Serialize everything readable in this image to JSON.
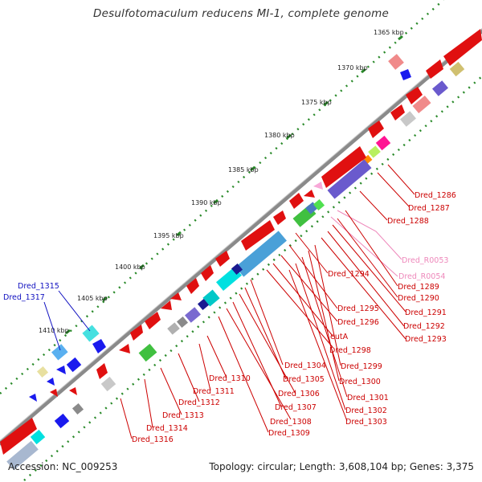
{
  "title": "Desulfotomaculum reducens MI-1, complete genome",
  "footer": {
    "accession": "Accession: NC_009253",
    "summary": "Topology: circular; Length: 3,608,104 bp; Genes: 3,375"
  },
  "ticks": [
    "1365 kbp",
    "1370 kbp",
    "1375 kbp",
    "1380 kbp",
    "1385 kbp",
    "1390 kbp",
    "1395 kbp",
    "1400 kbp",
    "1405 kbp",
    "1410 kbp"
  ],
  "labels": [
    {
      "text": "Dred_1315",
      "color": "#1010c0"
    },
    {
      "text": "Dred_1317",
      "color": "#1010c0"
    },
    {
      "text": "Dred_1286",
      "color": "#cc0000"
    },
    {
      "text": "Dred_1287",
      "color": "#cc0000"
    },
    {
      "text": "Dred_1288",
      "color": "#cc0000"
    },
    {
      "text": "Dred_R0053",
      "color": "#ee88bb"
    },
    {
      "text": "Dred_R0054",
      "color": "#ee88bb"
    },
    {
      "text": "Dred_1294",
      "color": "#cc0000"
    },
    {
      "text": "Dred_1289",
      "color": "#cc0000"
    },
    {
      "text": "Dred_1290",
      "color": "#cc0000"
    },
    {
      "text": "Dred_1291",
      "color": "#cc0000"
    },
    {
      "text": "Dred_1295",
      "color": "#cc0000"
    },
    {
      "text": "Dred_1292",
      "color": "#cc0000"
    },
    {
      "text": "Dred_1296",
      "color": "#cc0000"
    },
    {
      "text": "Dred_1293",
      "color": "#cc0000"
    },
    {
      "text": "eutA",
      "color": "#cc0000"
    },
    {
      "text": "Dred_1298",
      "color": "#cc0000"
    },
    {
      "text": "Dred_1299",
      "color": "#cc0000"
    },
    {
      "text": "Dred_1304",
      "color": "#cc0000"
    },
    {
      "text": "Dred_1310",
      "color": "#cc0000"
    },
    {
      "text": "Dred_1305",
      "color": "#cc0000"
    },
    {
      "text": "Dred_1300",
      "color": "#cc0000"
    },
    {
      "text": "Dred_1311",
      "color": "#cc0000"
    },
    {
      "text": "Dred_1306",
      "color": "#cc0000"
    },
    {
      "text": "Dred_1301",
      "color": "#cc0000"
    },
    {
      "text": "Dred_1312",
      "color": "#cc0000"
    },
    {
      "text": "Dred_1307",
      "color": "#cc0000"
    },
    {
      "text": "Dred_1302",
      "color": "#cc0000"
    },
    {
      "text": "Dred_1313",
      "color": "#cc0000"
    },
    {
      "text": "Dred_1308",
      "color": "#cc0000"
    },
    {
      "text": "Dred_1303",
      "color": "#cc0000"
    },
    {
      "text": "Dred_1314",
      "color": "#cc0000"
    },
    {
      "text": "Dred_1309",
      "color": "#cc0000"
    },
    {
      "text": "Dred_1316",
      "color": "#cc0000"
    }
  ]
}
